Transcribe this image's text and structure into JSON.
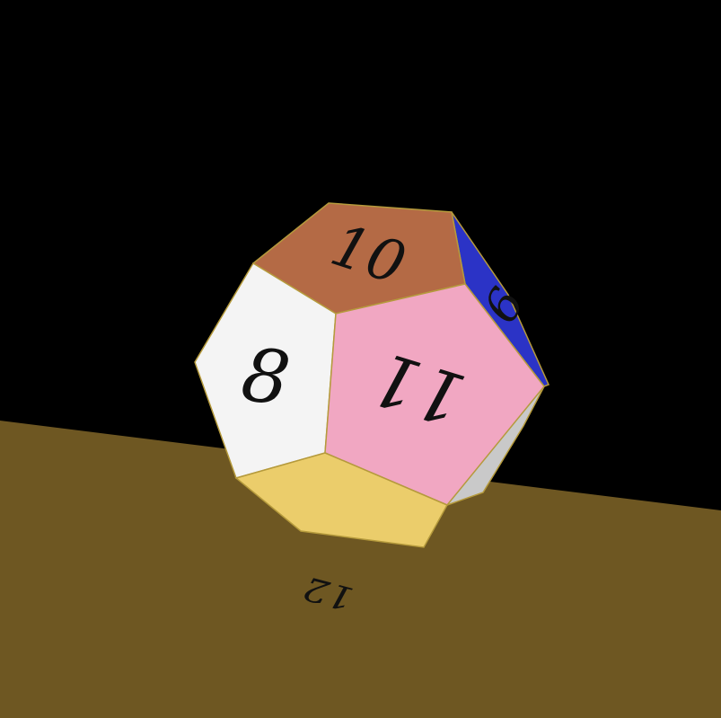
{
  "scene": {
    "background_color": "#000000",
    "table_color": "#6e5722",
    "die": {
      "type": "d12",
      "faces": [
        {
          "key": "top",
          "number": "10",
          "color": "#b46a45"
        },
        {
          "key": "left",
          "number": "8",
          "color": "#f4f4f4"
        },
        {
          "key": "center",
          "number": "11",
          "color": "#f1a7c2"
        },
        {
          "key": "right",
          "number": "6",
          "color": "#2b33c6"
        },
        {
          "key": "bottom",
          "number": "12",
          "color": "#ebcd6b"
        },
        {
          "key": "lower-right",
          "number": "",
          "color": "#c9c9c9"
        }
      ]
    }
  }
}
